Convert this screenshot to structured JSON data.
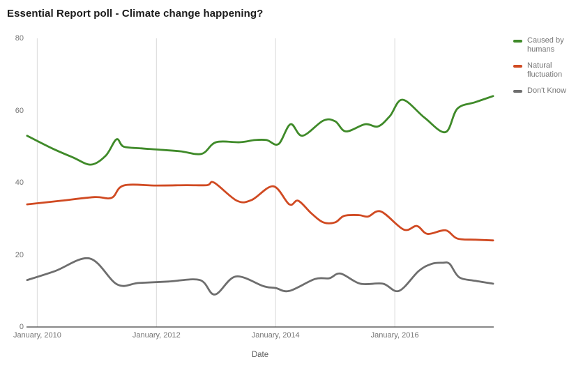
{
  "chart_data": {
    "type": "line",
    "title": "Essential Report poll - Climate change happening?",
    "xlabel": "Date",
    "ylabel": "",
    "xlim": [
      2009.82,
      2017.66
    ],
    "ylim": [
      0,
      80
    ],
    "y_ticks": [
      0,
      20,
      40,
      60,
      80
    ],
    "x_ticks": [
      {
        "value": 2010,
        "label": "January, 2010"
      },
      {
        "value": 2012,
        "label": "January, 2012"
      },
      {
        "value": 2014,
        "label": "January, 2014"
      },
      {
        "value": 2016,
        "label": "January, 2016"
      }
    ],
    "grid": "vertical-only",
    "legend_position": "right",
    "colors": {
      "grid": "#d9d9d9",
      "axis": "#424242",
      "tick_text": "#757575",
      "title_text": "#1b1b1b"
    },
    "series": [
      {
        "name": "Caused by humans",
        "color": "#3f8a29",
        "points": [
          [
            2009.83,
            53
          ],
          [
            2010.25,
            49.5
          ],
          [
            2010.6,
            47
          ],
          [
            2010.9,
            45
          ],
          [
            2011.15,
            47.5
          ],
          [
            2011.33,
            52
          ],
          [
            2011.45,
            50
          ],
          [
            2011.75,
            49.5
          ],
          [
            2012.0,
            49.2
          ],
          [
            2012.4,
            48.7
          ],
          [
            2012.76,
            48
          ],
          [
            2013.0,
            51.2
          ],
          [
            2013.4,
            51.2
          ],
          [
            2013.65,
            51.8
          ],
          [
            2013.85,
            51.8
          ],
          [
            2014.05,
            50.7
          ],
          [
            2014.25,
            56.2
          ],
          [
            2014.45,
            53
          ],
          [
            2014.8,
            57.2
          ],
          [
            2015.0,
            57
          ],
          [
            2015.18,
            54.2
          ],
          [
            2015.5,
            56.2
          ],
          [
            2015.72,
            55.6
          ],
          [
            2015.92,
            58.5
          ],
          [
            2016.13,
            63
          ],
          [
            2016.5,
            58
          ],
          [
            2016.85,
            54
          ],
          [
            2017.05,
            60.5
          ],
          [
            2017.35,
            62.3
          ],
          [
            2017.65,
            64
          ]
        ]
      },
      {
        "name": "Natural fluctuation",
        "color": "#d04a22",
        "points": [
          [
            2009.83,
            34
          ],
          [
            2010.4,
            35
          ],
          [
            2010.96,
            36
          ],
          [
            2011.25,
            35.8
          ],
          [
            2011.45,
            39.2
          ],
          [
            2012.0,
            39.2
          ],
          [
            2012.5,
            39.3
          ],
          [
            2012.85,
            39.3
          ],
          [
            2012.97,
            40
          ],
          [
            2013.35,
            35
          ],
          [
            2013.6,
            35.2
          ],
          [
            2013.96,
            39
          ],
          [
            2014.23,
            34
          ],
          [
            2014.38,
            35
          ],
          [
            2014.6,
            31.5
          ],
          [
            2014.8,
            29
          ],
          [
            2015.0,
            29
          ],
          [
            2015.15,
            30.8
          ],
          [
            2015.4,
            31
          ],
          [
            2015.55,
            30.6
          ],
          [
            2015.77,
            32
          ],
          [
            2016.15,
            27
          ],
          [
            2016.37,
            28
          ],
          [
            2016.55,
            25.8
          ],
          [
            2016.85,
            26.8
          ],
          [
            2017.05,
            24.5
          ],
          [
            2017.35,
            24.2
          ],
          [
            2017.65,
            24
          ]
        ]
      },
      {
        "name": "Don't Know",
        "color": "#6e6e6e",
        "points": [
          [
            2009.83,
            13
          ],
          [
            2010.3,
            15.5
          ],
          [
            2010.88,
            19
          ],
          [
            2011.34,
            11.8
          ],
          [
            2011.7,
            12.2
          ],
          [
            2012.2,
            12.6
          ],
          [
            2012.73,
            13
          ],
          [
            2012.98,
            9
          ],
          [
            2013.33,
            14
          ],
          [
            2013.8,
            11.3
          ],
          [
            2014.0,
            10.8
          ],
          [
            2014.23,
            10
          ],
          [
            2014.66,
            13.3
          ],
          [
            2014.9,
            13.5
          ],
          [
            2015.09,
            14.8
          ],
          [
            2015.42,
            12
          ],
          [
            2015.8,
            12
          ],
          [
            2016.07,
            10
          ],
          [
            2016.4,
            15.5
          ],
          [
            2016.62,
            17.5
          ],
          [
            2016.8,
            17.8
          ],
          [
            2016.92,
            17.5
          ],
          [
            2017.08,
            13.8
          ],
          [
            2017.35,
            12.8
          ],
          [
            2017.65,
            12
          ]
        ]
      }
    ]
  }
}
